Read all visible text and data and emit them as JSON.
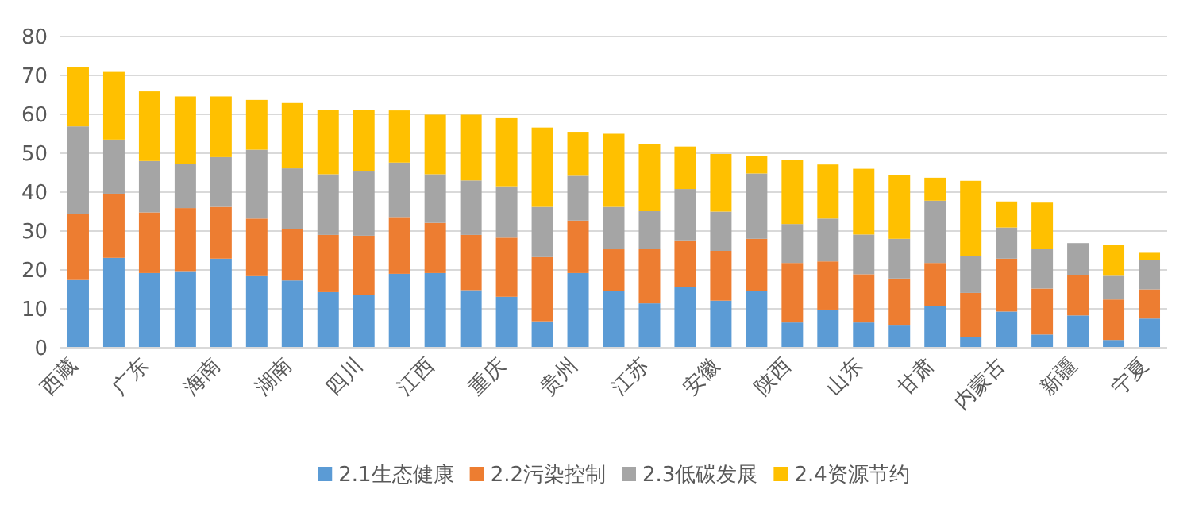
{
  "chart_data": {
    "type": "bar",
    "stacked": true,
    "categories": [
      "西藏",
      null,
      "广东",
      null,
      "海南",
      null,
      "湖南",
      null,
      "四川",
      null,
      "江西",
      null,
      "重庆",
      null,
      "贵州",
      null,
      "江苏",
      null,
      "安徽",
      null,
      "陕西",
      null,
      "山东",
      null,
      "甘肃",
      null,
      "内蒙古",
      null,
      "新疆",
      null,
      "宁夏"
    ],
    "series": [
      {
        "name": "2.1生态健康",
        "color": "#5b9bd5",
        "values": [
          17.4,
          23.1,
          19.2,
          19.7,
          22.9,
          18.4,
          17.3,
          14.3,
          13.5,
          19.0,
          19.2,
          14.8,
          13.1,
          6.8,
          19.2,
          14.6,
          11.4,
          15.6,
          12.1,
          14.6,
          6.5,
          9.8,
          6.5,
          5.9,
          10.7,
          2.7,
          9.3,
          3.4,
          8.3,
          2.0,
          7.5
        ]
      },
      {
        "name": "2.2污染控制",
        "color": "#ed7d31",
        "values": [
          17.0,
          16.5,
          15.6,
          16.2,
          13.3,
          14.8,
          13.3,
          14.7,
          15.3,
          14.6,
          12.9,
          14.2,
          15.2,
          16.5,
          13.5,
          10.7,
          14.0,
          12.0,
          12.8,
          13.4,
          15.3,
          12.4,
          12.4,
          11.9,
          11.1,
          11.4,
          13.6,
          11.8,
          10.3,
          10.4,
          7.5
        ]
      },
      {
        "name": "2.3低碳发展",
        "color": "#a5a5a5",
        "values": [
          22.5,
          13.9,
          13.2,
          11.4,
          12.8,
          17.7,
          15.5,
          15.6,
          16.5,
          14.0,
          12.5,
          14.0,
          13.2,
          12.9,
          11.5,
          10.9,
          9.7,
          13.2,
          10.1,
          16.8,
          10.0,
          11.0,
          10.2,
          10.2,
          16.0,
          9.4,
          8.0,
          10.2,
          8.3,
          6.1,
          7.6
        ]
      },
      {
        "name": "2.4资源节约",
        "color": "#ffc000",
        "values": [
          15.2,
          17.4,
          17.9,
          17.3,
          15.6,
          12.8,
          16.8,
          16.6,
          15.8,
          13.4,
          15.3,
          16.9,
          17.7,
          20.4,
          11.3,
          18.8,
          17.3,
          10.9,
          14.8,
          4.5,
          16.4,
          13.9,
          16.9,
          16.4,
          5.9,
          19.4,
          6.7,
          11.9,
          0,
          8.0,
          1.8
        ]
      }
    ],
    "ylim": [
      0,
      80
    ],
    "yticks": [
      0,
      10,
      20,
      30,
      40,
      50,
      60,
      70,
      80
    ],
    "grid": "y",
    "legend": "bottom"
  }
}
